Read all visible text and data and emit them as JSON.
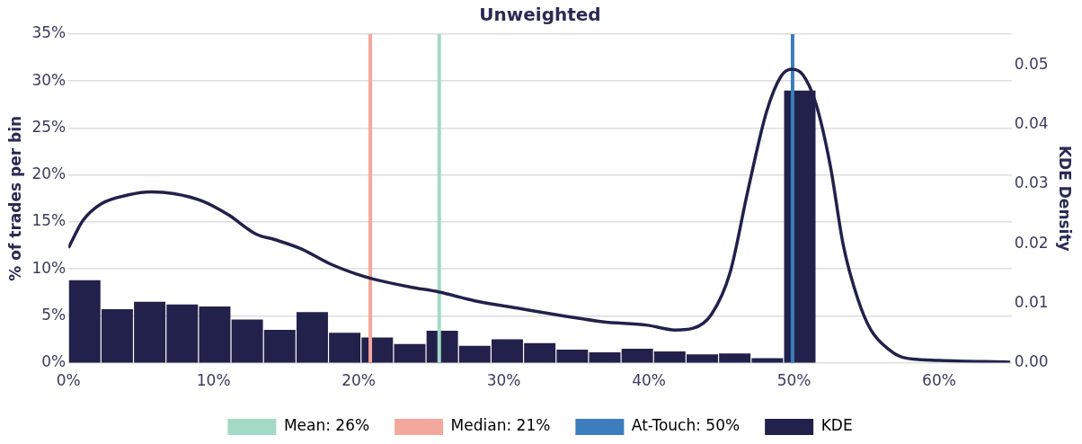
{
  "chart_data": {
    "type": "histogram",
    "title": "Unweighted",
    "ylabel": "% of trades per bin",
    "y2label": "KDE Density",
    "bins": [
      0,
      2.24,
      4.48,
      6.72,
      8.96,
      11.2,
      13.44,
      15.68,
      17.92,
      20.16,
      22.4,
      24.64,
      26.88,
      29.12,
      31.36,
      33.6,
      35.84,
      38.08,
      40.32,
      42.56,
      44.8,
      47.04,
      49.28,
      51.52
    ],
    "series": [
      {
        "color": "#22214b",
        "values": [
          8.8,
          5.7,
          6.5,
          6.2,
          6.0,
          4.6,
          3.5,
          5.4,
          3.2,
          2.7,
          2.0,
          3.4,
          1.8,
          2.5,
          2.1,
          1.4,
          1.1,
          1.5,
          1.2,
          0.9,
          1.0,
          0.5,
          29.0
        ]
      },
      {
        "type": "line",
        "name": "KDE",
        "axis": "y2",
        "color": "#22214b",
        "x": [
          0,
          1.0,
          2.26,
          4.14,
          5.7,
          7.28,
          9.17,
          11.05,
          12.93,
          14.2,
          16.07,
          17.95,
          19.84,
          21.1,
          23.6,
          25.5,
          28.0,
          31.1,
          34.3,
          36.8,
          39.9,
          41.8,
          43.06,
          44.3,
          45.6,
          46.8,
          48.1,
          49.1,
          49.84,
          50.6,
          51.5,
          52.5,
          53.4,
          54.4,
          55.3,
          56.6,
          57.5,
          60.0,
          64.9
        ],
        "values": [
          0.0193,
          0.0239,
          0.0267,
          0.0282,
          0.0287,
          0.0284,
          0.0272,
          0.0248,
          0.0216,
          0.0207,
          0.0191,
          0.0167,
          0.0149,
          0.014,
          0.0127,
          0.0119,
          0.0104,
          0.0091,
          0.0078,
          0.0069,
          0.0063,
          0.0055,
          0.0058,
          0.0081,
          0.0152,
          0.0287,
          0.0421,
          0.0481,
          0.0493,
          0.0484,
          0.0436,
          0.0331,
          0.0197,
          0.0107,
          0.0055,
          0.0021,
          0.0009,
          0.0004,
          0.0001
        ]
      }
    ],
    "ref_lines": [
      {
        "axis": "x",
        "value": 25.55,
        "label": "Mean: 26%",
        "color": "#a3dac6"
      },
      {
        "axis": "x",
        "value": 20.8,
        "label": "Median: 21%",
        "color": "#f3a89d"
      },
      {
        "axis": "x",
        "value": 49.9,
        "label": "At-Touch: 50%",
        "color": "#3b7dbd"
      }
    ],
    "xlim": [
      0,
      65
    ],
    "xticks": [
      {
        "value": 0,
        "label": "0%"
      },
      {
        "value": 10,
        "label": "10%"
      },
      {
        "value": 20,
        "label": "20%"
      },
      {
        "value": 30,
        "label": "30%"
      },
      {
        "value": 40,
        "label": "40%"
      },
      {
        "value": 50,
        "label": "50%"
      },
      {
        "value": 60,
        "label": "60%"
      }
    ],
    "ylim": [
      0,
      35
    ],
    "yticks": [
      {
        "value": 0,
        "label": "0%"
      },
      {
        "value": 5,
        "label": "5%"
      },
      {
        "value": 10,
        "label": "10%"
      },
      {
        "value": 15,
        "label": "15%"
      },
      {
        "value": 20,
        "label": "20%"
      },
      {
        "value": 25,
        "label": "25%"
      },
      {
        "value": 30,
        "label": "30%"
      },
      {
        "value": 35,
        "label": "35%"
      }
    ],
    "y2lim": [
      0,
      0.0552
    ],
    "y2ticks": [
      {
        "value": 0,
        "label": "0.00"
      },
      {
        "value": 0.01,
        "label": "0.01"
      },
      {
        "value": 0.02,
        "label": "0.02"
      },
      {
        "value": 0.03,
        "label": "0.03"
      },
      {
        "value": 0.04,
        "label": "0.04"
      },
      {
        "value": 0.05,
        "label": "0.05"
      }
    ],
    "grid": "y",
    "legend": "bottom"
  }
}
